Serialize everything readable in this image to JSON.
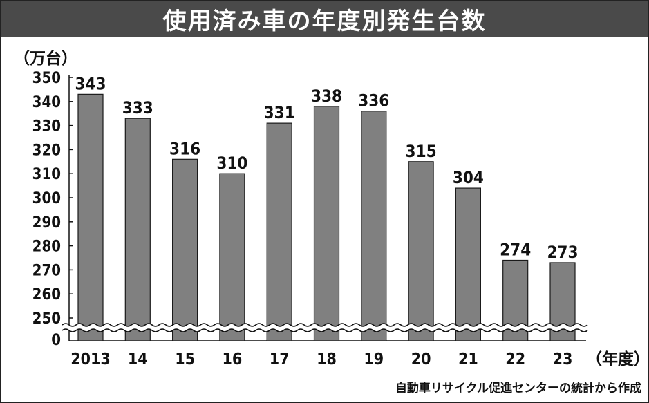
{
  "chart_data": {
    "type": "bar",
    "title": "使用済み車の年度別発生台数",
    "ylabel": "（万台）",
    "xlabel": "（年度）",
    "categories": [
      "2013",
      "14",
      "15",
      "16",
      "17",
      "18",
      "19",
      "20",
      "21",
      "22",
      "23"
    ],
    "values": [
      343,
      333,
      316,
      310,
      331,
      338,
      336,
      315,
      304,
      274,
      273
    ],
    "value_labels": [
      "343",
      "333",
      "316",
      "310",
      "331",
      "338",
      "336",
      "315",
      "304",
      "274",
      "273"
    ],
    "ylim": [
      250,
      350
    ],
    "axis_break": {
      "below": "250",
      "base_label": "0"
    },
    "yticks": [
      "350",
      "340",
      "330",
      "320",
      "310",
      "300",
      "290",
      "280",
      "270",
      "260",
      "250"
    ],
    "source": "自動車リサイクル促進センターの統計から作成",
    "grid": false,
    "legend": "none",
    "colors": {
      "bar": "#808080",
      "bar_stroke": "#1a1a1a",
      "title_bg": "#4a4a4a",
      "title_text": "#ffffff"
    }
  }
}
